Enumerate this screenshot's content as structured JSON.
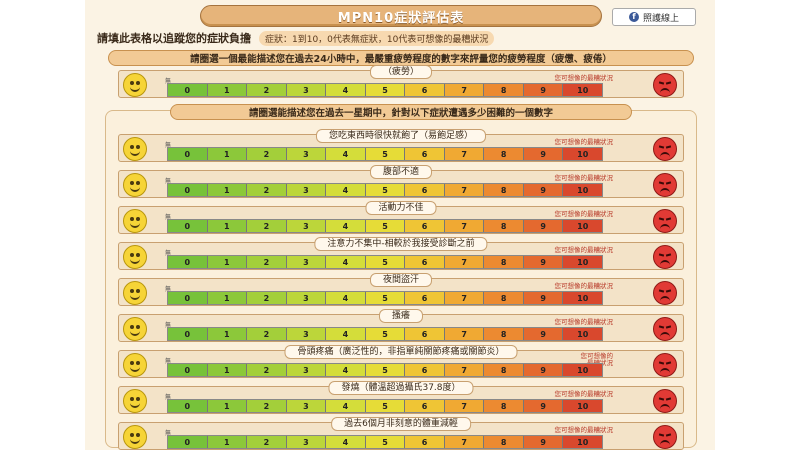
{
  "title": "MPN10症狀評估表",
  "share_label": "照護線上",
  "instruction": {
    "main": "請填此表格以追蹤您的症狀負擔",
    "sub": "症狀：1到10，0代表無症狀，10代表可想像的最糟狀況"
  },
  "section1_head": "請圈選一個最能描述您在過去24小時中，最嚴重疲勞程度的數字來評量您的疲勞程度（疲憊、疲倦）",
  "section2_head": "請圈選能描述您在過去一星期中，針對以下症狀遭遇多少困難的一個數字",
  "scale_numbers": [
    "0",
    "1",
    "2",
    "3",
    "4",
    "5",
    "6",
    "7",
    "8",
    "9",
    "10"
  ],
  "scale_colors": [
    "#77c23a",
    "#8cc83a",
    "#a3cf3a",
    "#bcd63a",
    "#d4dd3a",
    "#e6dc37",
    "#efc535",
    "#f0a933",
    "#ec8a31",
    "#e4692f",
    "#d9482d"
  ],
  "low_label": "無",
  "high_label": "您可想像的最糟狀況",
  "high_label_short": "您可想像的最糟狀況",
  "icons": {
    "low": "happy-face-icon",
    "high": "sad-face-icon",
    "share": "facebook-icon"
  },
  "rows": [
    {
      "label": "（疲勞）"
    },
    {
      "label": "您吃東西時很快就飽了（易飽足感）"
    },
    {
      "label": "腹部不適"
    },
    {
      "label": "活動力不佳"
    },
    {
      "label": "注意力不集中-相較於我接受診斷之前"
    },
    {
      "label": "夜間盜汗"
    },
    {
      "label": "搔癢"
    },
    {
      "label": "骨頭疼痛（廣泛性的，非指單純關節疼痛或關節炎）"
    },
    {
      "label": "發燒（體溫超過攝氏37.8度）"
    },
    {
      "label": "過去6個月非刻意的體重減輕"
    }
  ]
}
